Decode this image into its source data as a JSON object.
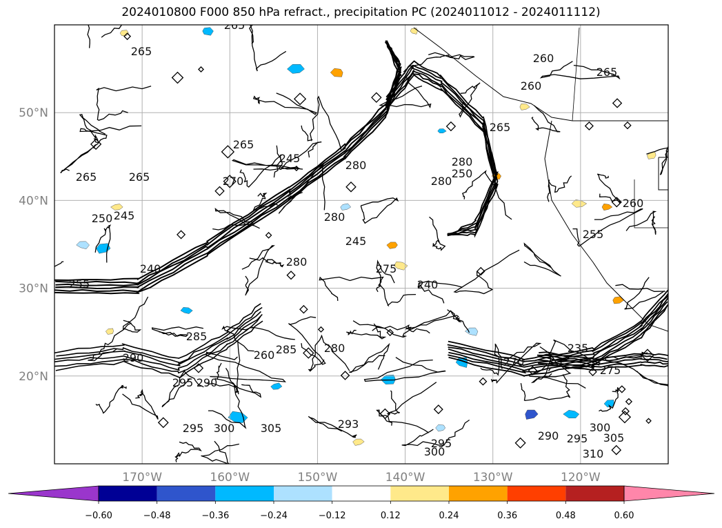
{
  "title": "2024010800 F000 850 hPa refract., precipitation PC (2024011012 - 2024011112)",
  "chart_data": {
    "type": "heatmap",
    "map": {
      "lat_ticks": [
        "50°N",
        "40°N",
        "30°N",
        "20°N"
      ],
      "lat_values": [
        50,
        40,
        30,
        20
      ],
      "lon_ticks": [
        "170°W",
        "160°W",
        "150°W",
        "140°W",
        "130°W",
        "120°W"
      ],
      "lon_values": [
        -170,
        -160,
        -150,
        -140,
        -130,
        -120
      ],
      "lat_range": [
        10,
        60
      ],
      "lon_range": [
        -180,
        -110
      ],
      "grid": true
    },
    "contour_labels": [
      "265",
      "265",
      "265",
      "265",
      "260",
      "260",
      "260",
      "265",
      "270",
      "245",
      "250",
      "245",
      "255",
      "240",
      "280",
      "280",
      "245",
      "240",
      "280",
      "290",
      "285",
      "290",
      "295",
      "295",
      "300",
      "305",
      "280",
      "285",
      "260",
      "280",
      "235",
      "275",
      "300",
      "305",
      "295",
      "290",
      "300",
      "295",
      "310",
      "270",
      "275",
      "293",
      "250",
      "280",
      "265",
      "255",
      "265"
    ],
    "colorbar": {
      "ticks": [
        "−0.60",
        "−0.48",
        "−0.36",
        "−0.24",
        "−0.12",
        "0.12",
        "0.24",
        "0.36",
        "0.48",
        "0.60"
      ],
      "tick_values": [
        -0.6,
        -0.48,
        -0.36,
        -0.24,
        -0.12,
        0.12,
        0.24,
        0.36,
        0.48,
        0.6
      ],
      "colors": [
        "#9a36cc",
        "#000095",
        "#2f55cc",
        "#00b9ff",
        "#ade1ff",
        "#ffffff",
        "#ffe98a",
        "#ffa200",
        "#ff3f00",
        "#b52020",
        "#ff86aa"
      ],
      "extend": "both"
    }
  }
}
